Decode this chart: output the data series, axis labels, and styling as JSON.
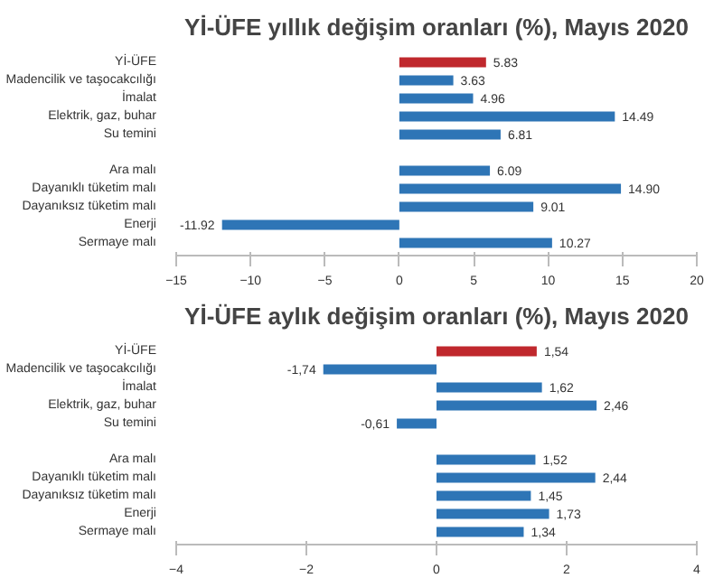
{
  "chart_data": [
    {
      "type": "bar",
      "orientation": "horizontal",
      "title": "Yİ-ÜFE yıllık değişim oranları (%), Mayıs 2020",
      "categories": [
        "Yİ-ÜFE",
        "Madencilik ve taşocakcılığı",
        "İmalat",
        "Elektrik, gaz, buhar",
        "Su temini",
        null,
        "Ara malı",
        "Dayanıklı tüketim malı",
        "Dayanıksız tüketim malı",
        "Enerji",
        "Sermaye malı"
      ],
      "values": [
        5.83,
        3.63,
        4.96,
        14.49,
        6.81,
        null,
        6.09,
        14.9,
        9.01,
        -11.92,
        10.27
      ],
      "value_labels": [
        "5.83",
        "3.63",
        "4.96",
        "14.49",
        "6.81",
        null,
        "6.09",
        "14.90",
        "9.01",
        "-11.92",
        "10.27"
      ],
      "colors": [
        "#c0282d",
        "#2e75b6",
        "#2e75b6",
        "#2e75b6",
        "#2e75b6",
        "#2e75b6",
        "#2e75b6",
        "#2e75b6",
        "#2e75b6",
        "#2e75b6",
        "#2e75b6"
      ],
      "xlim": [
        -15,
        20
      ],
      "xticks": [
        -15,
        -10,
        -5,
        0,
        5,
        10,
        15,
        20
      ]
    },
    {
      "type": "bar",
      "orientation": "horizontal",
      "title": "Yİ-ÜFE aylık değişim oranları (%), Mayıs 2020",
      "categories": [
        "Yİ-ÜFE",
        "Madencilik ve taşocakcılığı",
        "İmalat",
        "Elektrik, gaz, buhar",
        "Su temini",
        null,
        "Ara malı",
        "Dayanıklı tüketim malı",
        "Dayanıksız tüketim malı",
        "Enerji",
        "Sermaye malı"
      ],
      "values": [
        1.54,
        -1.74,
        1.62,
        2.46,
        -0.61,
        null,
        1.52,
        2.44,
        1.45,
        1.73,
        1.34
      ],
      "value_labels": [
        "1,54",
        "-1,74",
        "1,62",
        "2,46",
        "-0,61",
        null,
        "1,52",
        "2,44",
        "1,45",
        "1,73",
        "1,34"
      ],
      "colors": [
        "#c0282d",
        "#2e75b6",
        "#2e75b6",
        "#2e75b6",
        "#2e75b6",
        "#2e75b6",
        "#2e75b6",
        "#2e75b6",
        "#2e75b6",
        "#2e75b6",
        "#2e75b6"
      ],
      "xlim": [
        -4,
        4
      ],
      "xticks": [
        -4,
        -2,
        0,
        2,
        4
      ]
    }
  ]
}
